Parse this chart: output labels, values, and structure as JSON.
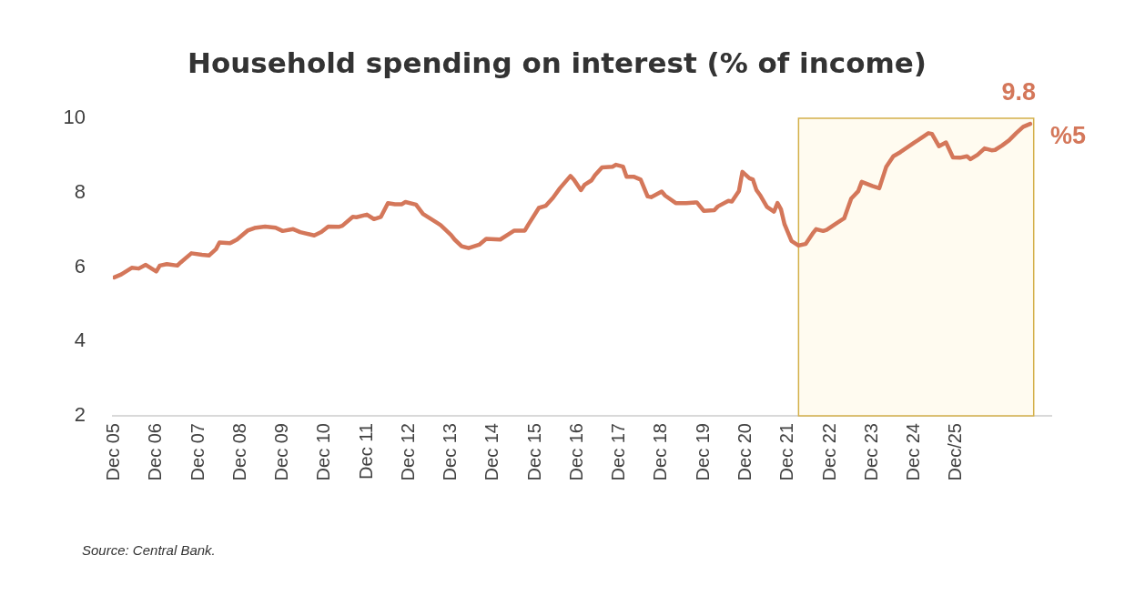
{
  "chart_data": {
    "type": "line",
    "title": "Household spending on interest (% of income)",
    "annotations": [
      "9.8",
      "%5",
      "Source: Central Bank."
    ],
    "series": [
      {
        "color": "#d4775a",
        "x": [
          "2005-12",
          "2006-02",
          "2006-05",
          "2006-07",
          "2006-09",
          "2006-12",
          "2007-01",
          "2007-03",
          "2007-06",
          "2007-07",
          "2007-10",
          "2008-01",
          "2008-03",
          "2008-05",
          "2008-06",
          "2008-09",
          "2008-11",
          "2009-02",
          "2009-04",
          "2009-07",
          "2009-10",
          "2009-12",
          "2010-03",
          "2010-05",
          "2010-09",
          "2010-11",
          "2011-01",
          "2011-04",
          "2011-05",
          "2011-08",
          "2011-09",
          "2011-12",
          "2012-02",
          "2012-04",
          "2012-06",
          "2012-08",
          "2012-10",
          "2012-11",
          "2013-02",
          "2013-04",
          "2013-08",
          "2013-09",
          "2013-12",
          "2014-01",
          "2014-03",
          "2014-05",
          "2014-07",
          "2014-08",
          "2014-10",
          "2015-02",
          "2015-06",
          "2015-09",
          "2015-10",
          "2016-01",
          "2016-03",
          "2016-05",
          "2016-07",
          "2016-10",
          "2016-11",
          "2017-01",
          "2017-02",
          "2017-04",
          "2017-05",
          "2017-07",
          "2017-10",
          "2017-11",
          "2018-01",
          "2018-02",
          "2018-04",
          "2018-06",
          "2018-08",
          "2018-09",
          "2018-12",
          "2019-01",
          "2019-04",
          "2019-07",
          "2019-10",
          "2019-12",
          "2020-03",
          "2020-04",
          "2020-07",
          "2020-08",
          "2020-10",
          "2020-11",
          "2021-01",
          "2021-02",
          "2021-03",
          "2021-04",
          "2021-06",
          "2021-08",
          "2021-09",
          "2021-10",
          "2021-11",
          "2022-01",
          "2022-03",
          "2022-05",
          "2022-07",
          "2022-08",
          "2022-10",
          "2022-11",
          "2023-02",
          "2023-04",
          "2023-06",
          "2023-08",
          "2023-09",
          "2023-12",
          "2024-02",
          "2024-04",
          "2024-06",
          "2024-08",
          "2024-12",
          "2025-01",
          "2025-04",
          "2025-05",
          "2025-07",
          "2025-09",
          "2025-11",
          "2026-01",
          "2026-03",
          "2026-04",
          "2026-06",
          "2026-08",
          "2026-10",
          "2026-11",
          "2027-01",
          "2027-03",
          "2027-05",
          "2027-07",
          "2027-09"
        ],
        "values": [
          5.72,
          5.8,
          5.98,
          5.96,
          6.06,
          5.88,
          6.04,
          6.08,
          6.04,
          6.13,
          6.37,
          6.33,
          6.31,
          6.48,
          6.66,
          6.64,
          6.74,
          6.98,
          7.05,
          7.09,
          7.06,
          6.97,
          7.02,
          6.94,
          6.85,
          6.94,
          7.09,
          7.08,
          7.11,
          7.35,
          7.34,
          7.41,
          7.29,
          7.35,
          7.72,
          7.69,
          7.69,
          7.75,
          7.68,
          7.43,
          7.19,
          7.13,
          6.86,
          6.74,
          6.56,
          6.51,
          6.57,
          6.6,
          6.76,
          6.74,
          6.98,
          6.98,
          7.14,
          7.59,
          7.65,
          7.86,
          8.12,
          8.45,
          8.35,
          8.07,
          8.21,
          8.33,
          8.47,
          8.68,
          8.7,
          8.75,
          8.7,
          8.43,
          8.43,
          8.35,
          7.9,
          7.88,
          8.03,
          7.92,
          7.72,
          7.72,
          7.74,
          7.51,
          7.53,
          7.63,
          7.78,
          7.76,
          8.04,
          8.56,
          8.39,
          8.35,
          8.07,
          7.94,
          7.62,
          7.49,
          7.72,
          7.55,
          7.15,
          6.7,
          6.58,
          6.62,
          6.9,
          7.02,
          6.97,
          7.0,
          7.19,
          7.31,
          7.84,
          8.04,
          8.29,
          8.18,
          8.12,
          8.7,
          8.98,
          9.09,
          9.35,
          9.41,
          9.6,
          9.58,
          9.25,
          9.35,
          8.95,
          8.94,
          8.98,
          8.9,
          9.02,
          9.19,
          9.14,
          9.15,
          9.27,
          9.41,
          9.6,
          9.77,
          9.85
        ]
      }
    ],
    "xlim": [
      "2005-11-20",
      "2028-03"
    ],
    "xticks": [
      {
        "value": "2005-12",
        "label": "Dec 05"
      },
      {
        "value": "2006-12",
        "label": "Dec 06"
      },
      {
        "value": "2007-12",
        "label": "Dec 07"
      },
      {
        "value": "2008-12",
        "label": "Dec 08"
      },
      {
        "value": "2009-12",
        "label": "Dec 09"
      },
      {
        "value": "2010-12",
        "label": "Dec 10"
      },
      {
        "value": "2011-12",
        "label": "Dec 11"
      },
      {
        "value": "2012-12",
        "label": "Dec 12"
      },
      {
        "value": "2013-12",
        "label": "Dec 13"
      },
      {
        "value": "2014-12",
        "label": "Dec 14"
      },
      {
        "value": "2015-12",
        "label": "Dec 15"
      },
      {
        "value": "2016-12",
        "label": "Dec 16"
      },
      {
        "value": "2017-12",
        "label": "Dec 17"
      },
      {
        "value": "2018-12",
        "label": "Dec 18"
      },
      {
        "value": "2019-12",
        "label": "Dec 19"
      },
      {
        "value": "2020-12",
        "label": "Dec 20"
      },
      {
        "value": "2021-12",
        "label": "Dec 21"
      },
      {
        "value": "2022-12",
        "label": "Dec 22"
      },
      {
        "value": "2023-12",
        "label": "Dec 23"
      },
      {
        "value": "2024-12",
        "label": "Dec 24"
      },
      {
        "value": "2025-12",
        "label": "Dec/25"
      }
    ],
    "ylim": [
      2,
      10
    ],
    "yticks": [
      2,
      4,
      6,
      8,
      10
    ],
    "bands": [
      {
        "axis": "x",
        "from": "2022-03",
        "to": "2027-10",
        "color": "#fffbf0"
      }
    ],
    "grid": false,
    "legend": false,
    "marker": "none",
    "line_style": "solid"
  }
}
